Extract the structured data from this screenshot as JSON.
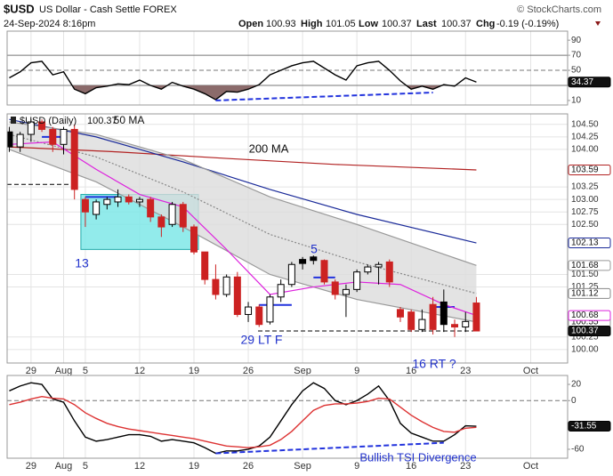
{
  "header": {
    "symbol": "$USD",
    "name": "US Dollar - Cash Settle FOREX",
    "copyright": "© StockCharts.com",
    "timestamp": "24-Sep-2024 8:16pm",
    "open": "Open",
    "high": "High",
    "low": "Low",
    "last": "Last",
    "chg": "Chg",
    "chg_value": "-0.19 (-0.19%)"
  },
  "chart_data": [
    {
      "type": "line",
      "ylim": [
        4,
        102
      ],
      "yticks": [
        10,
        50,
        70,
        90
      ],
      "hlines": [
        {
          "value": 70
        },
        {
          "value": 50,
          "dash": true
        },
        {
          "value": 30
        }
      ],
      "series": [
        {
          "color": "#000000",
          "last_label": true,
          "fill_below": 30,
          "fill_color": "#8b6b6b",
          "x": [
            0,
            1,
            2,
            3,
            4,
            5,
            6,
            7,
            8,
            9,
            10,
            11,
            12,
            13,
            14,
            15,
            16,
            17,
            18,
            19,
            20,
            21,
            22,
            23,
            24,
            25,
            26,
            27,
            28,
            29,
            30,
            31,
            32,
            33,
            34,
            35,
            36,
            37,
            38,
            39,
            40,
            41,
            42,
            43
          ],
          "values": [
            40,
            48,
            60,
            62,
            44,
            48,
            25,
            19,
            27,
            29,
            32,
            31,
            37,
            30,
            25,
            34,
            29,
            25,
            19,
            11,
            22,
            21,
            25,
            31,
            44,
            50,
            56,
            60,
            62,
            53,
            44,
            37,
            56,
            60,
            62,
            50,
            36,
            25,
            29,
            25,
            31,
            29,
            40,
            34.37
          ]
        }
      ],
      "trendline": {
        "x": [
          19,
          39
        ],
        "values": [
          10,
          20.5
        ],
        "color": "#2233dd"
      }
    },
    {
      "type": "candlestick",
      "ylim": [
        99.73,
        104.71
      ],
      "xlim": [
        -0.2,
        51.4
      ],
      "grid": true,
      "legend_label": "$USD (Daily)",
      "yticks": [
        {
          "value": 100,
          "label": "100.00"
        },
        100.25,
        101.25,
        {
          "value": 101.5,
          "label": "101.50"
        },
        {
          "value": 102.5,
          "label": "102.50"
        },
        102.75,
        {
          "value": 103,
          "label": "103.00"
        },
        103.25,
        {
          "value": 104,
          "label": "104.00"
        },
        104.25,
        {
          "value": 104.5,
          "label": "104.50"
        }
      ],
      "xticks": [
        {
          "value": 2,
          "label": "29"
        },
        {
          "value": 5,
          "label": "Aug"
        },
        {
          "value": 7,
          "label": "5"
        },
        {
          "value": 12,
          "label": "12"
        },
        {
          "value": 17,
          "label": "19"
        },
        {
          "value": 22,
          "label": "26"
        },
        {
          "value": 27,
          "label": "Sep"
        },
        {
          "value": 32,
          "label": "9"
        },
        {
          "value": 37,
          "label": "16"
        },
        {
          "value": 42,
          "label": "23"
        },
        {
          "value": 48,
          "label": "Oct"
        }
      ],
      "x": [
        0,
        1,
        2,
        3,
        4,
        5,
        6,
        7,
        8,
        9,
        10,
        11,
        12,
        13,
        14,
        15,
        16,
        17,
        18,
        19,
        20,
        21,
        22,
        23,
        24,
        25,
        26,
        27,
        28,
        29,
        30,
        31,
        32,
        33,
        34,
        35,
        36,
        37,
        38,
        39,
        40,
        41,
        42,
        43
      ],
      "open": [
        104.35,
        104.05,
        104.3,
        104.55,
        104.4,
        104.1,
        104.4,
        103.0,
        102.7,
        102.9,
        102.95,
        103.05,
        102.95,
        103.0,
        102.65,
        102.5,
        102.9,
        102.45,
        101.95,
        101.4,
        101.1,
        101.45,
        100.7,
        100.85,
        100.55,
        101.05,
        101.3,
        101.8,
        101.85,
        101.78,
        101.35,
        101.1,
        101.2,
        101.55,
        101.65,
        101.75,
        100.8,
        100.75,
        100.4,
        100.9,
        100.95,
        100.5,
        100.45,
        100.93
      ],
      "high": [
        104.45,
        104.35,
        104.6,
        104.6,
        104.45,
        104.45,
        104.5,
        103.05,
        103.0,
        103.05,
        103.2,
        103.1,
        103.05,
        103.05,
        102.7,
        102.95,
        102.95,
        102.5,
        101.95,
        101.7,
        101.5,
        101.55,
        100.95,
        100.9,
        101.1,
        101.4,
        101.75,
        101.85,
        101.88,
        101.8,
        101.4,
        101.3,
        101.6,
        101.7,
        101.75,
        101.8,
        100.85,
        100.8,
        100.8,
        101.05,
        101.2,
        100.6,
        100.75,
        101.05
      ],
      "low": [
        103.95,
        103.95,
        104.15,
        104.35,
        103.95,
        103.9,
        103.0,
        102.45,
        102.6,
        102.8,
        102.85,
        102.9,
        102.85,
        102.55,
        102.25,
        102.45,
        102.35,
        101.9,
        101.3,
        101.0,
        101.05,
        100.65,
        100.55,
        100.45,
        100.5,
        100.95,
        101.25,
        101.6,
        101.7,
        101.3,
        101.0,
        100.65,
        101.15,
        101.5,
        101.3,
        101.25,
        100.55,
        100.35,
        100.35,
        100.3,
        100.35,
        100.25,
        100.35,
        100.37
      ],
      "close": [
        104.05,
        104.3,
        104.55,
        104.4,
        104.1,
        104.4,
        103.2,
        102.75,
        102.95,
        103.0,
        103.05,
        102.95,
        103.0,
        102.65,
        102.45,
        102.9,
        102.45,
        101.95,
        101.4,
        101.1,
        101.45,
        100.7,
        100.85,
        100.5,
        101.05,
        101.3,
        101.7,
        101.72,
        101.78,
        101.35,
        101.1,
        101.2,
        101.55,
        101.65,
        101.7,
        101.35,
        100.65,
        100.4,
        100.6,
        100.4,
        100.5,
        100.45,
        100.56,
        100.37
      ],
      "up_color": "#000000",
      "down_color": "#cc2222",
      "band": [
        2,
        4
      ],
      "band_color": "#dcdcdc",
      "series": [
        {
          "color": "#b22222",
          "last_label": true,
          "x": [
            0,
            10,
            20,
            30,
            43
          ],
          "values": [
            104.05,
            103.95,
            103.82,
            103.7,
            103.59
          ]
        },
        {
          "color": "#1a2a99",
          "last_label": true,
          "x": [
            0,
            8,
            16,
            24,
            32,
            43
          ],
          "values": [
            104.6,
            104.25,
            103.75,
            103.2,
            102.7,
            102.13
          ]
        },
        {
          "color": "#999999",
          "last_label": true,
          "x": [
            0,
            8,
            16,
            24,
            32,
            43
          ],
          "values": [
            104.55,
            104.3,
            103.8,
            103.05,
            102.5,
            101.68
          ]
        },
        {
          "color": "#888888",
          "dash": true,
          "last_label": true,
          "x": [
            0,
            8,
            16,
            24,
            32,
            43
          ],
          "values": [
            104.3,
            103.85,
            103.15,
            102.3,
            101.75,
            101.12
          ]
        },
        {
          "color": "#999999",
          "last_label": true,
          "x": [
            0,
            8,
            16,
            24,
            32,
            43
          ],
          "values": [
            104.0,
            103.35,
            102.45,
            101.5,
            101.0,
            100.55
          ]
        },
        {
          "color": "#dd22dd",
          "last_label": true,
          "x": [
            0,
            4,
            8,
            12,
            16,
            20,
            24,
            28,
            32,
            36,
            40,
            43
          ],
          "values": [
            104.1,
            104.15,
            103.6,
            103.1,
            102.85,
            102.0,
            101.1,
            101.25,
            101.35,
            101.3,
            100.9,
            100.68
          ]
        }
      ],
      "box": {
        "x": [
          7,
          17
        ],
        "y": [
          102.0,
          103.1
        ],
        "color": "#7fe8e8"
      },
      "levels": [
        {
          "x": [
            -0.2,
            6.1
          ],
          "value": 103.3,
          "color": "#000000",
          "dash": true
        },
        {
          "x": [
            22.9,
            42.7
          ],
          "value": 100.37,
          "color": "#000000",
          "dash": true
        },
        {
          "x": [
            3,
            5
          ],
          "value": 104.25,
          "color": "#2233dd"
        },
        {
          "x": [
            7,
            10
          ],
          "value": 103.05,
          "color": "#2233dd"
        },
        {
          "x": [
            23,
            26
          ],
          "value": 100.89,
          "color": "#2233dd"
        },
        {
          "x": [
            28,
            30
          ],
          "value": 101.44,
          "color": "#2233dd"
        },
        {
          "x": [
            39,
            41
          ],
          "value": 100.85,
          "color": "#2233dd"
        }
      ],
      "annotations": [
        {
          "text": "50 MA",
          "color": "#111111"
        },
        {
          "text": "200 MA",
          "color": "#111111"
        },
        {
          "text": "13",
          "color": "#2233cc"
        },
        {
          "text": "5",
          "color": "#2233cc"
        },
        {
          "text": "29 LT F",
          "color": "#2233cc"
        },
        {
          "text": "16 RT ?",
          "color": "#2233cc"
        }
      ]
    },
    {
      "type": "line",
      "ylim": [
        -71,
        31
      ],
      "yticks": [
        -60,
        0,
        20
      ],
      "hlines": [
        {
          "value": 0,
          "dash": true
        }
      ],
      "xticks": [
        {
          "value": 2,
          "label": "29"
        },
        {
          "value": 5,
          "label": "Aug"
        },
        {
          "value": 7,
          "label": "5"
        },
        {
          "value": 12,
          "label": "12"
        },
        {
          "value": 17,
          "label": "19"
        },
        {
          "value": 22,
          "label": "26"
        },
        {
          "value": 27,
          "label": "Sep"
        },
        {
          "value": 32,
          "label": "9"
        },
        {
          "value": 37,
          "label": "16"
        },
        {
          "value": 42,
          "label": "23"
        },
        {
          "value": 48,
          "label": "Oct"
        }
      ],
      "series": [
        {
          "color": "#000000",
          "last_label": true,
          "x": [
            0,
            1,
            2,
            3,
            4,
            5,
            6,
            7,
            8,
            9,
            10,
            11,
            12,
            13,
            14,
            15,
            16,
            17,
            18,
            19,
            20,
            21,
            22,
            23,
            24,
            25,
            26,
            27,
            28,
            29,
            30,
            31,
            32,
            33,
            34,
            35,
            36,
            37,
            38,
            39,
            40,
            41,
            42,
            43
          ],
          "values": [
            12,
            18,
            22,
            20,
            2,
            -2,
            -25,
            -45,
            -50,
            -48,
            -45,
            -42,
            -42,
            -44,
            -50,
            -48,
            -50,
            -52,
            -58,
            -65,
            -62,
            -62,
            -60,
            -56,
            -45,
            -25,
            -5,
            12,
            22,
            15,
            0,
            -5,
            0,
            8,
            18,
            0,
            -28,
            -40,
            -45,
            -50,
            -50,
            -42,
            -31,
            -31.55
          ]
        },
        {
          "color": "#dd3333",
          "x": [
            0,
            1,
            2,
            3,
            4,
            5,
            6,
            7,
            8,
            9,
            10,
            11,
            12,
            13,
            14,
            15,
            16,
            17,
            18,
            19,
            20,
            21,
            22,
            23,
            24,
            25,
            26,
            27,
            28,
            29,
            30,
            31,
            32,
            33,
            34,
            35,
            36,
            37,
            38,
            39,
            40,
            41,
            42,
            43
          ],
          "values": [
            -5,
            -2,
            2,
            5,
            3,
            2,
            -5,
            -15,
            -22,
            -28,
            -32,
            -35,
            -37,
            -39,
            -41,
            -43,
            -45,
            -47,
            -50,
            -53,
            -56,
            -57,
            -58,
            -57,
            -55,
            -48,
            -38,
            -25,
            -12,
            -6,
            -4,
            -4,
            -3,
            -1,
            3,
            2,
            -8,
            -18,
            -26,
            -33,
            -38,
            -39,
            -34,
            -33
          ]
        }
      ],
      "trendline": {
        "x": [
          19,
          40
        ],
        "values": [
          -65,
          -52
        ],
        "color": "#2233dd"
      },
      "annotations": [
        {
          "text": "Bullish TSI Divergence",
          "color": "#2233cc"
        }
      ]
    }
  ]
}
